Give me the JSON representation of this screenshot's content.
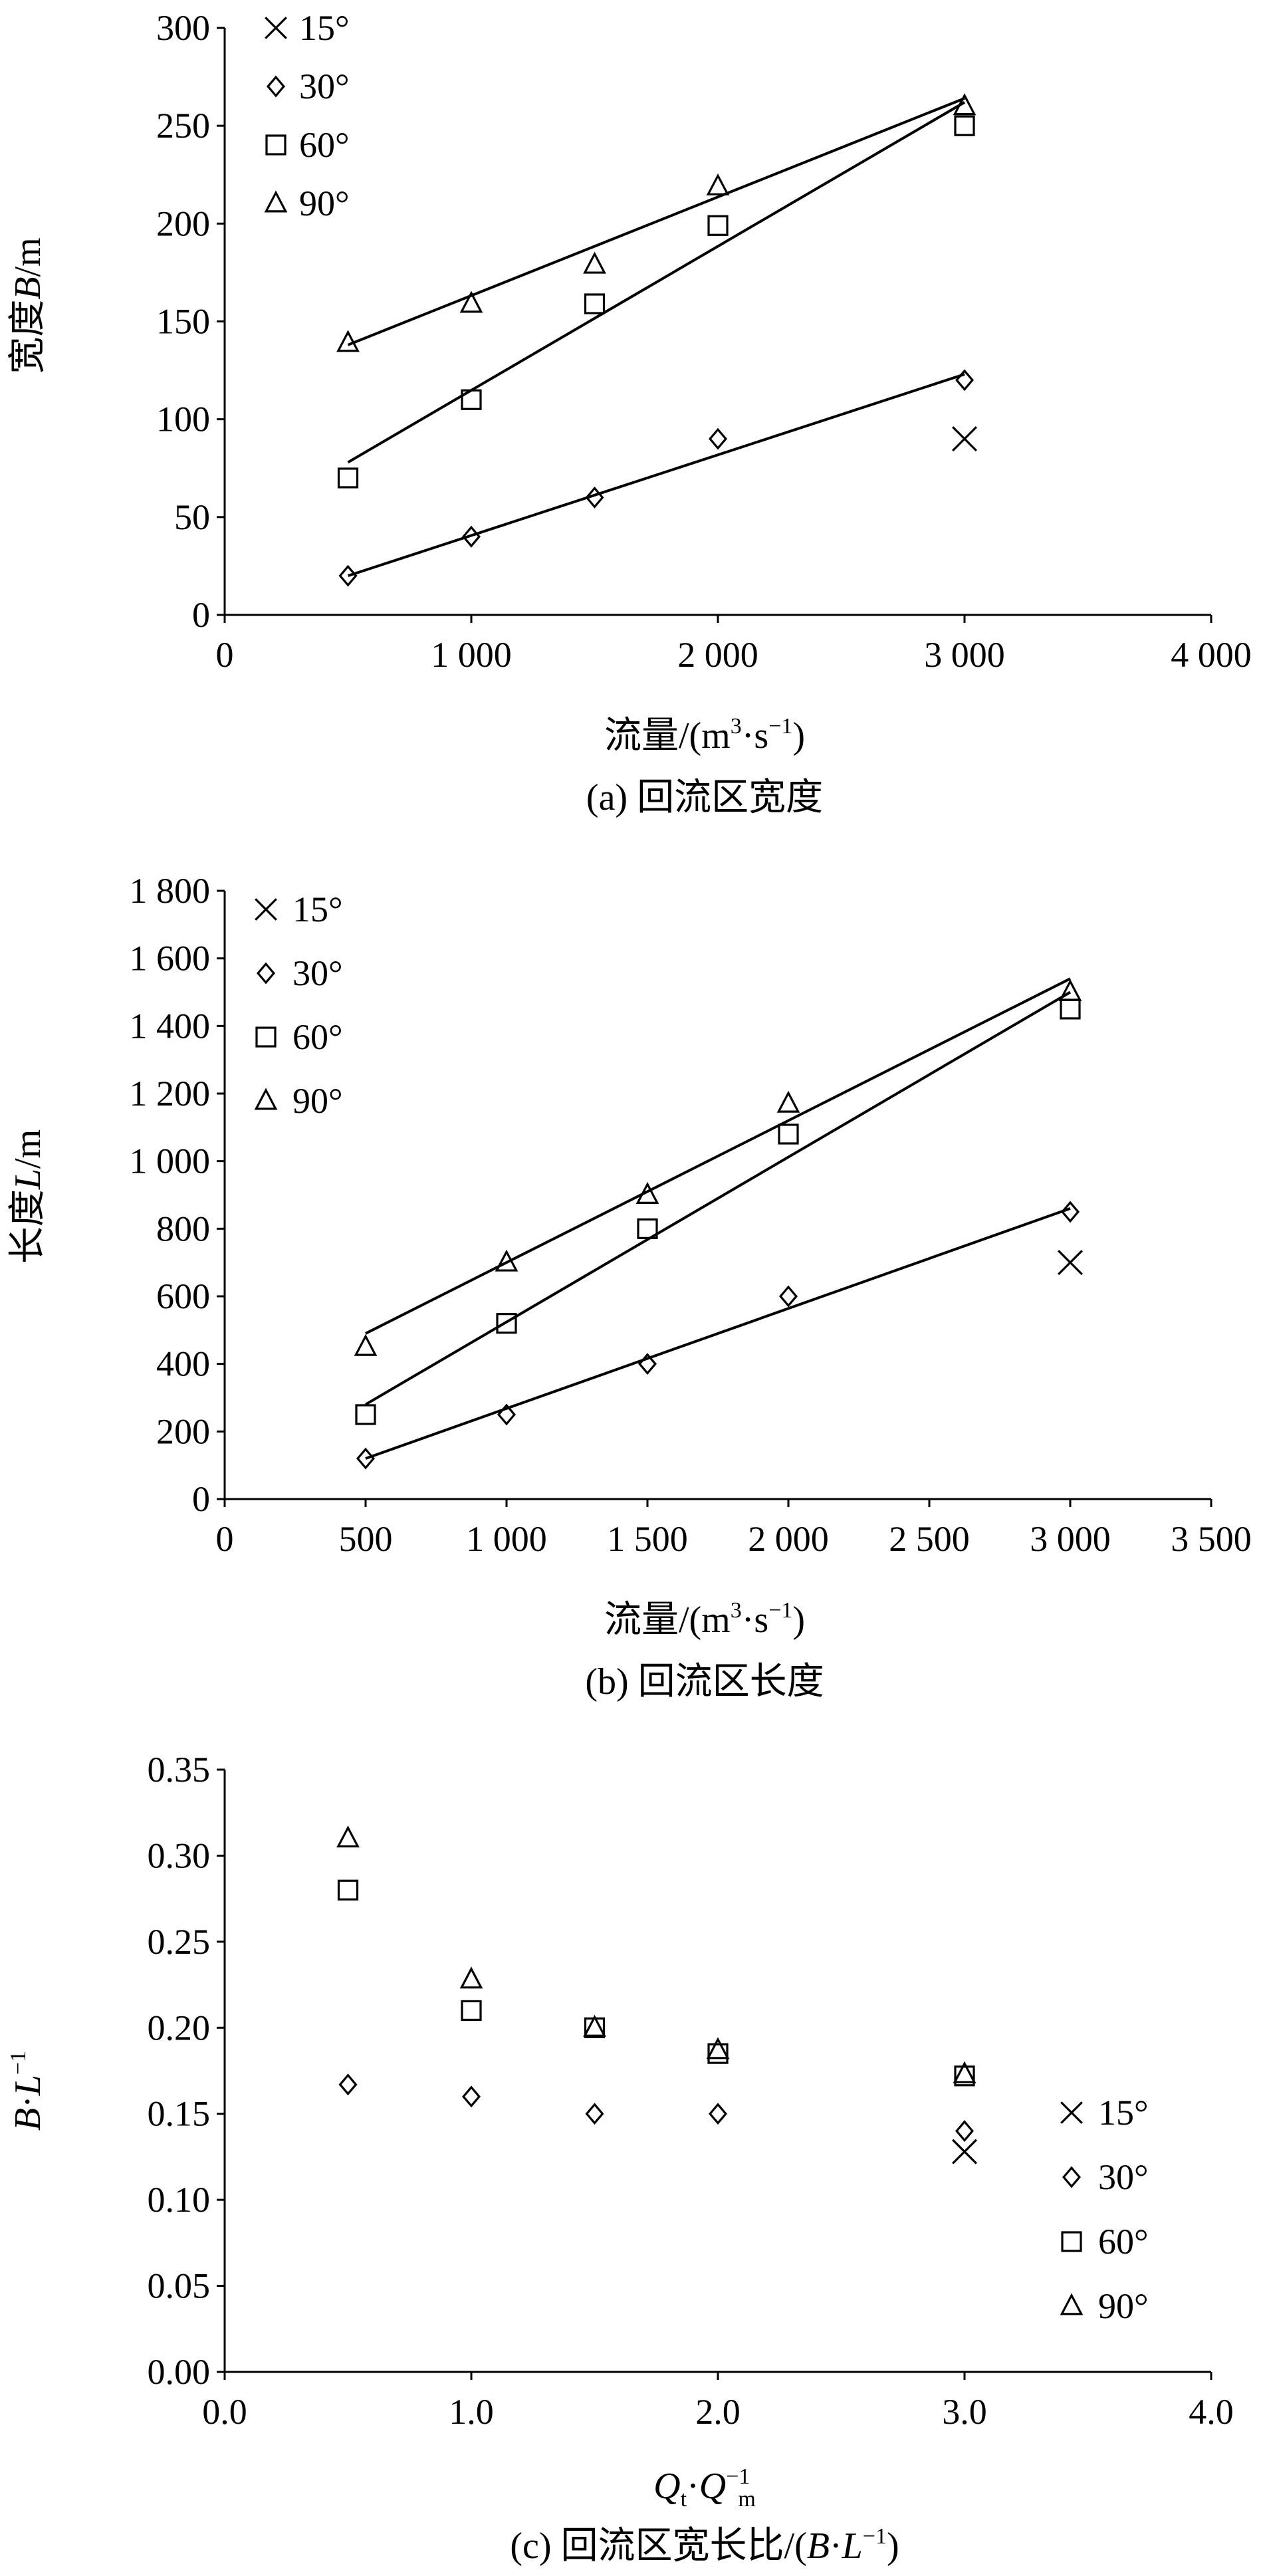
{
  "charts": [
    {
      "type": "scatter",
      "caption": "(a) 回流区宽度",
      "xlabel": "流量/(m³·s⁻¹)",
      "ylabel": "宽度B/m",
      "xlim": [
        0,
        4000
      ],
      "ylim": [
        0,
        300
      ],
      "xticks": [
        0,
        1000,
        2000,
        3000,
        4000
      ],
      "xtick_labels": [
        "0",
        "1 000",
        "2 000",
        "3 000",
        "4 000"
      ],
      "yticks": [
        0,
        50,
        100,
        150,
        200,
        250,
        300
      ],
      "ytick_labels": [
        "0",
        "50",
        "100",
        "150",
        "200",
        "250",
        "300"
      ],
      "legend_position": "top-left",
      "grid": false,
      "series": [
        {
          "name": "15°",
          "marker": "x",
          "points": [
            [
              3000,
              90
            ]
          ]
        },
        {
          "name": "30°",
          "marker": "diamond",
          "points": [
            [
              500,
              20
            ],
            [
              1000,
              40
            ],
            [
              1500,
              60
            ],
            [
              2000,
              90
            ],
            [
              3000,
              120
            ]
          ],
          "trendline": [
            [
              500,
              20
            ],
            [
              3000,
              123
            ]
          ]
        },
        {
          "name": "60°",
          "marker": "square",
          "points": [
            [
              500,
              70
            ],
            [
              1000,
              110
            ],
            [
              1500,
              159
            ],
            [
              2000,
              199
            ],
            [
              3000,
              250
            ]
          ],
          "trendline": [
            [
              500,
              78
            ],
            [
              3000,
              262
            ]
          ]
        },
        {
          "name": "90°",
          "marker": "triangle",
          "points": [
            [
              500,
              139
            ],
            [
              1000,
              159
            ],
            [
              1500,
              179
            ],
            [
              2000,
              219
            ],
            [
              3000,
              260
            ]
          ],
          "trendline": [
            [
              500,
              138
            ],
            [
              3000,
              264
            ]
          ]
        }
      ]
    },
    {
      "type": "scatter",
      "caption": "(b) 回流区长度",
      "xlabel": "流量/(m³·s⁻¹)",
      "ylabel": "长度L/m",
      "xlim": [
        0,
        3500
      ],
      "ylim": [
        0,
        1800
      ],
      "xticks": [
        0,
        500,
        1000,
        1500,
        2000,
        2500,
        3000,
        3500
      ],
      "xtick_labels": [
        "0",
        "500",
        "1 000",
        "1 500",
        "2 000",
        "2 500",
        "3 000",
        "3 500"
      ],
      "yticks": [
        0,
        200,
        400,
        600,
        800,
        1000,
        1200,
        1400,
        1600,
        1800
      ],
      "ytick_labels": [
        "0",
        "200",
        "400",
        "600",
        "800",
        "1 000",
        "1 200",
        "1 400",
        "1 600",
        "1 800"
      ],
      "legend_position": "top-left",
      "grid": false,
      "series": [
        {
          "name": "15°",
          "marker": "x",
          "points": [
            [
              3000,
              700
            ]
          ]
        },
        {
          "name": "30°",
          "marker": "diamond",
          "points": [
            [
              500,
              120
            ],
            [
              1000,
              250
            ],
            [
              1500,
              400
            ],
            [
              2000,
              600
            ],
            [
              3000,
              850
            ]
          ],
          "trendline": [
            [
              500,
              120
            ],
            [
              3000,
              860
            ]
          ]
        },
        {
          "name": "60°",
          "marker": "square",
          "points": [
            [
              500,
              250
            ],
            [
              1000,
              520
            ],
            [
              1500,
              800
            ],
            [
              2000,
              1080
            ],
            [
              3000,
              1450
            ]
          ],
          "trendline": [
            [
              500,
              280
            ],
            [
              3000,
              1500
            ]
          ]
        },
        {
          "name": "90°",
          "marker": "triangle",
          "points": [
            [
              500,
              450
            ],
            [
              1000,
              700
            ],
            [
              1500,
              900
            ],
            [
              2000,
              1170
            ],
            [
              3000,
              1500
            ]
          ],
          "trendline": [
            [
              500,
              490
            ],
            [
              3000,
              1540
            ]
          ]
        }
      ]
    },
    {
      "type": "scatter",
      "caption": "(c) 回流区宽长比/(B·L⁻¹)",
      "xlabel": "Qt·Qm⁻¹",
      "ylabel": "B·L⁻¹",
      "xlim": [
        0,
        4
      ],
      "ylim": [
        0,
        0.35
      ],
      "xticks": [
        0,
        1,
        2,
        3,
        4
      ],
      "xtick_labels": [
        "0.0",
        "1.0",
        "2.0",
        "3.0",
        "4.0"
      ],
      "yticks": [
        0,
        0.05,
        0.1,
        0.15,
        0.2,
        0.25,
        0.3,
        0.35
      ],
      "ytick_labels": [
        "0.00",
        "0.05",
        "0.10",
        "0.15",
        "0.20",
        "0.25",
        "0.30",
        "0.35"
      ],
      "legend_position": "bottom-right",
      "grid": false,
      "series": [
        {
          "name": "15°",
          "marker": "x",
          "points": [
            [
              3,
              0.128
            ]
          ]
        },
        {
          "name": "30°",
          "marker": "diamond",
          "points": [
            [
              0.5,
              0.167
            ],
            [
              1,
              0.16
            ],
            [
              1.5,
              0.15
            ],
            [
              2,
              0.15
            ],
            [
              3,
              0.14
            ]
          ]
        },
        {
          "name": "60°",
          "marker": "square",
          "points": [
            [
              0.5,
              0.28
            ],
            [
              1,
              0.21
            ],
            [
              1.5,
              0.2
            ],
            [
              2,
              0.185
            ],
            [
              3,
              0.172
            ]
          ]
        },
        {
          "name": "90°",
          "marker": "triangle",
          "points": [
            [
              0.5,
              0.31
            ],
            [
              1,
              0.228
            ],
            [
              1.5,
              0.2
            ],
            [
              2,
              0.187
            ],
            [
              3,
              0.173
            ]
          ]
        }
      ]
    }
  ]
}
